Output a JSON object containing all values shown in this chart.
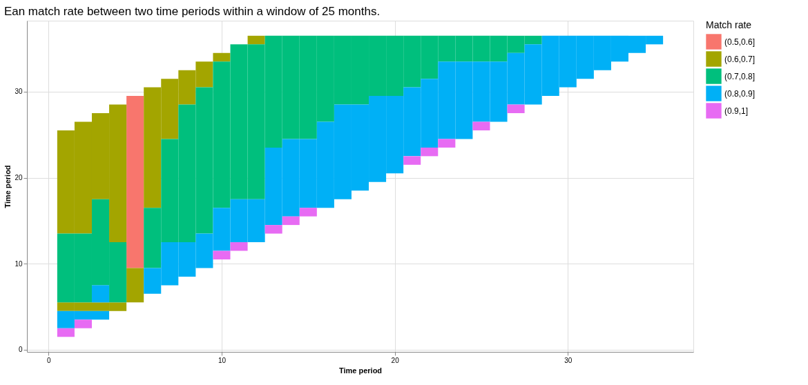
{
  "chart_data": {
    "type": "bar",
    "title": "Ean match rate between two time periods within a window of 25 months.",
    "xlabel": "Time period",
    "ylabel": "Time period",
    "legend_title": "Match rate",
    "legend": "right",
    "grid": true,
    "xlim": [
      -1.25,
      37.25
    ],
    "xticks": [
      0,
      10,
      20,
      30
    ],
    "ylim": [
      -0.25,
      38.25
    ],
    "yticks": [
      0,
      10,
      20,
      30
    ],
    "x": [
      1,
      2,
      3,
      4,
      5,
      6,
      7,
      8,
      9,
      10,
      11,
      12,
      13,
      14,
      15,
      16,
      17,
      18,
      19,
      20,
      21,
      22,
      23,
      24,
      25,
      26,
      27,
      28,
      29,
      30,
      31,
      32,
      33,
      34,
      35
    ],
    "series": [
      {
        "name": "(0.5,0.6]",
        "color": "#f8766d",
        "base": [
          null,
          null,
          null,
          null,
          9.5,
          null,
          null,
          null,
          null,
          null,
          null,
          null,
          null,
          null,
          null,
          null,
          null,
          null,
          null,
          null,
          null,
          null,
          null,
          null,
          null,
          null,
          null,
          null,
          null,
          null,
          null,
          null,
          null,
          null,
          null
        ],
        "values": [
          null,
          null,
          null,
          null,
          20,
          null,
          null,
          null,
          null,
          null,
          null,
          null,
          null,
          null,
          null,
          null,
          null,
          null,
          null,
          null,
          null,
          null,
          null,
          null,
          null,
          null,
          null,
          null,
          null,
          null,
          null,
          null,
          null,
          null,
          null
        ]
      },
      {
        "name": "(0.6,0.7]",
        "color": "#a3a500",
        "base": [
          4.5,
          4.5,
          4.5,
          4.5,
          5.5,
          16.5,
          24.5,
          28.5,
          30.5,
          33.5,
          null,
          35.5,
          null,
          null,
          null,
          null,
          null,
          null,
          null,
          null,
          null,
          null,
          null,
          null,
          null,
          null,
          null,
          null,
          null,
          null,
          null,
          null,
          null,
          null,
          null
        ],
        "values": [
          1,
          1,
          1,
          1,
          4,
          14,
          7,
          4,
          3,
          1,
          null,
          1,
          null,
          null,
          null,
          null,
          null,
          null,
          null,
          null,
          null,
          null,
          null,
          null,
          null,
          null,
          null,
          null,
          null,
          null,
          null,
          null,
          null,
          null,
          null
        ]
      },
      {
        "color": "#a3a500",
        "base": [
          13.5,
          13.5,
          17.5,
          12.5,
          null,
          null,
          null,
          null,
          null,
          null,
          null,
          null,
          null,
          null,
          null,
          null,
          null,
          null,
          null,
          null,
          null,
          null,
          null,
          null,
          null,
          null,
          null,
          null,
          null,
          null,
          null,
          null,
          null,
          null,
          null
        ],
        "values": [
          12,
          13,
          10,
          16,
          null,
          null,
          null,
          null,
          null,
          null,
          null,
          null,
          null,
          null,
          null,
          null,
          null,
          null,
          null,
          null,
          null,
          null,
          null,
          null,
          null,
          null,
          null,
          null,
          null,
          null,
          null,
          null,
          null,
          null,
          null
        ]
      },
      {
        "name": "(0.7,0.8]",
        "color": "#00bf7d",
        "base": [
          5.5,
          5.5,
          7.5,
          5.5,
          null,
          9.5,
          12.5,
          12.5,
          13.5,
          16.5,
          17.5,
          17.5,
          23.5,
          24.5,
          24.5,
          26.5,
          28.5,
          28.5,
          29.5,
          29.5,
          30.5,
          31.5,
          33.5,
          33.5,
          33.5,
          33.5,
          34.5,
          35.5,
          null,
          null,
          null,
          null,
          null,
          null,
          null
        ],
        "values": [
          8,
          8,
          10,
          7,
          null,
          7,
          12,
          16,
          17,
          17,
          18,
          18,
          13,
          12,
          12,
          10,
          8,
          8,
          7,
          7,
          6,
          5,
          3,
          3,
          3,
          3,
          2,
          1,
          null,
          null,
          null,
          null,
          null,
          null,
          null
        ]
      },
      {
        "name": "(0.8,0.9]",
        "color": "#00b0f6",
        "base": [
          2.5,
          3.5,
          3.5,
          null,
          null,
          6.5,
          7.5,
          8.5,
          9.5,
          11.5,
          12.5,
          12.5,
          14.5,
          15.5,
          16.5,
          16.5,
          17.5,
          18.5,
          19.5,
          20.5,
          22.5,
          23.5,
          24.5,
          24.5,
          26.5,
          26.5,
          28.5,
          28.5,
          29.5,
          30.5,
          31.5,
          32.5,
          33.5,
          34.5,
          35.5
        ],
        "values": [
          2,
          1,
          1,
          null,
          null,
          3,
          5,
          4,
          4,
          5,
          5,
          5,
          9,
          9,
          8,
          10,
          11,
          10,
          10,
          9,
          8,
          8,
          9,
          9,
          7,
          7,
          6,
          7,
          7,
          6,
          5,
          4,
          3,
          2,
          1
        ]
      },
      {
        "color": "#00b0f6",
        "base": [
          null,
          null,
          5.5,
          null,
          null,
          null,
          null,
          null,
          null,
          null,
          null,
          null,
          null,
          null,
          null,
          null,
          null,
          null,
          null,
          null,
          null,
          null,
          null,
          null,
          null,
          null,
          null,
          null,
          null,
          null,
          null,
          null,
          null,
          null,
          null
        ],
        "values": [
          null,
          null,
          2,
          null,
          null,
          null,
          null,
          null,
          null,
          null,
          null,
          null,
          null,
          null,
          null,
          null,
          null,
          null,
          null,
          null,
          null,
          null,
          null,
          null,
          null,
          null,
          null,
          null,
          null,
          null,
          null,
          null,
          null,
          null,
          null
        ]
      },
      {
        "name": "(0.9,1]",
        "color": "#e76bf3",
        "base": [
          1.5,
          2.5,
          null,
          null,
          null,
          null,
          null,
          null,
          null,
          10.5,
          11.5,
          null,
          13.5,
          14.5,
          15.5,
          null,
          null,
          null,
          null,
          null,
          21.5,
          22.5,
          23.5,
          null,
          25.5,
          null,
          27.5,
          null,
          null,
          null,
          null,
          null,
          null,
          null,
          null
        ],
        "values": [
          1,
          1,
          null,
          null,
          null,
          null,
          null,
          null,
          null,
          1,
          1,
          null,
          1,
          1,
          1,
          null,
          null,
          null,
          null,
          null,
          1,
          1,
          1,
          null,
          1,
          null,
          1,
          null,
          null,
          null,
          null,
          null,
          null,
          null,
          null
        ]
      }
    ]
  }
}
